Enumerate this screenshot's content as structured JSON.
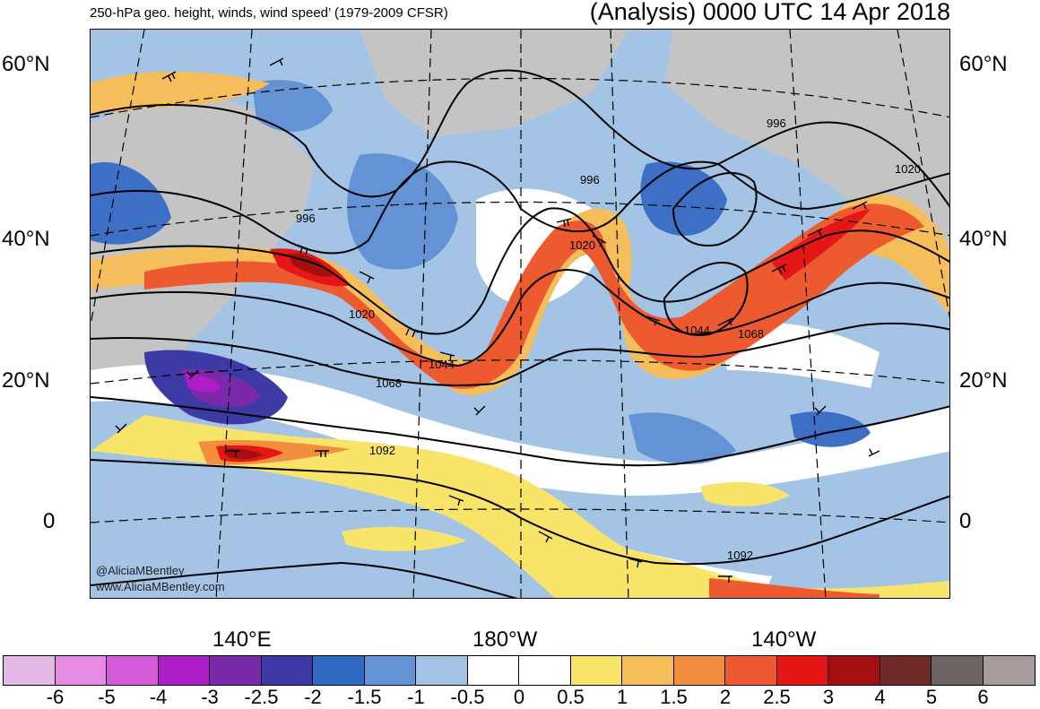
{
  "header": {
    "subtitle": "250-hPa geo. height, winds, wind speed’ (1979-2009 CFSR)",
    "title": "(Analysis) 0000 UTC 14 Apr 2018"
  },
  "axes": {
    "lat_labels_left": [
      "60°N",
      "40°N",
      "20°N",
      "0"
    ],
    "lat_labels_right": [
      "60°N",
      "40°N",
      "20°N",
      "0"
    ],
    "lon_labels": [
      "140°E",
      "180°W",
      "140°W"
    ]
  },
  "contour_labels": [
    "996",
    "996",
    "996",
    "1020",
    "1020",
    "1020",
    "1044",
    "1044",
    "1068",
    "1068",
    "1092",
    "1092"
  ],
  "watermark": {
    "handle": "@AliciaMBentley",
    "site": "www.AliciaMBentley.com"
  },
  "colorbar": {
    "colors": [
      "#e6b8e6",
      "#e58ae5",
      "#d35bd8",
      "#ad1ec8",
      "#7a2aa8",
      "#3d39a5",
      "#2f6bc5",
      "#6393d4",
      "#a4c4e6",
      "#ffffff",
      "#ffffff",
      "#f9e46a",
      "#f5be5a",
      "#f18f3f",
      "#ee5a2f",
      "#e41616",
      "#a30f0f",
      "#6e2b27",
      "#6e6563",
      "#a89c9a"
    ],
    "ticks": [
      "-6",
      "-5",
      "-4",
      "-3",
      "-2.5",
      "-2",
      "-1.5",
      "-1",
      "-0.5",
      "0",
      "0.5",
      "1",
      "1.5",
      "2",
      "2.5",
      "3",
      "4",
      "5",
      "6"
    ]
  }
}
